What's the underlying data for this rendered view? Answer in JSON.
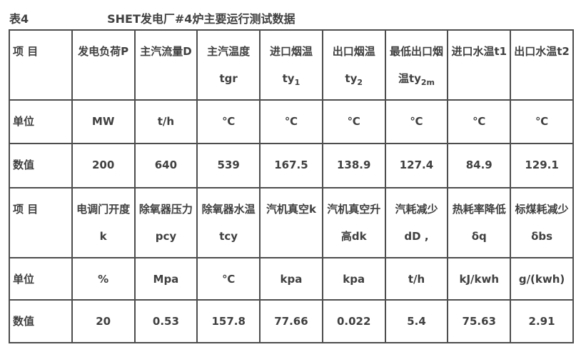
{
  "page": {
    "table_label": "表4",
    "title": "SHET发电厂#4炉主要运行测试数据"
  },
  "colors": {
    "text": "#404040",
    "border": "#4d4d4d",
    "background": "#ffffff"
  },
  "table": {
    "rows": [
      {
        "type": "item-header",
        "cells": [
          "项 目",
          "发电负荷P",
          "主汽流量D",
          "主汽温度tgr",
          {
            "main": "进口烟温ty",
            "sub": "1"
          },
          {
            "main": "出口烟温ty",
            "sub": "2"
          },
          {
            "main": "最低出口烟\n温ty",
            "sub": "2m"
          },
          "进口水温t1",
          "出口水温t2"
        ]
      },
      {
        "type": "unit",
        "cells": [
          "单位",
          "MW",
          "t/h",
          "℃",
          "℃",
          "℃",
          "℃",
          "℃",
          "℃"
        ]
      },
      {
        "type": "value",
        "cells": [
          "数值",
          "200",
          "640",
          "539",
          "167.5",
          "138.9",
          "127.4",
          "84.9",
          "129.1"
        ]
      },
      {
        "type": "item-header",
        "cells": [
          "项 目",
          "电调门开度k",
          "除氧器压力\npcy",
          "除氧器水温\ntcy",
          "汽机真空k",
          "汽机真空升\n高dk",
          "汽耗减少\ndD ,",
          "热耗率降低\nδq",
          "标煤耗减少\nδbs"
        ]
      },
      {
        "type": "unit",
        "cells": [
          "单位",
          "%",
          "Mpa",
          "℃",
          "kpa",
          "kpa",
          "t/h",
          "kJ/kwh",
          "g/(kwh)"
        ]
      },
      {
        "type": "value",
        "cells": [
          "数值",
          "20",
          "0.53",
          "157.8",
          "77.66",
          "0.022",
          "5.4",
          "75.63",
          "2.91"
        ]
      }
    ]
  }
}
